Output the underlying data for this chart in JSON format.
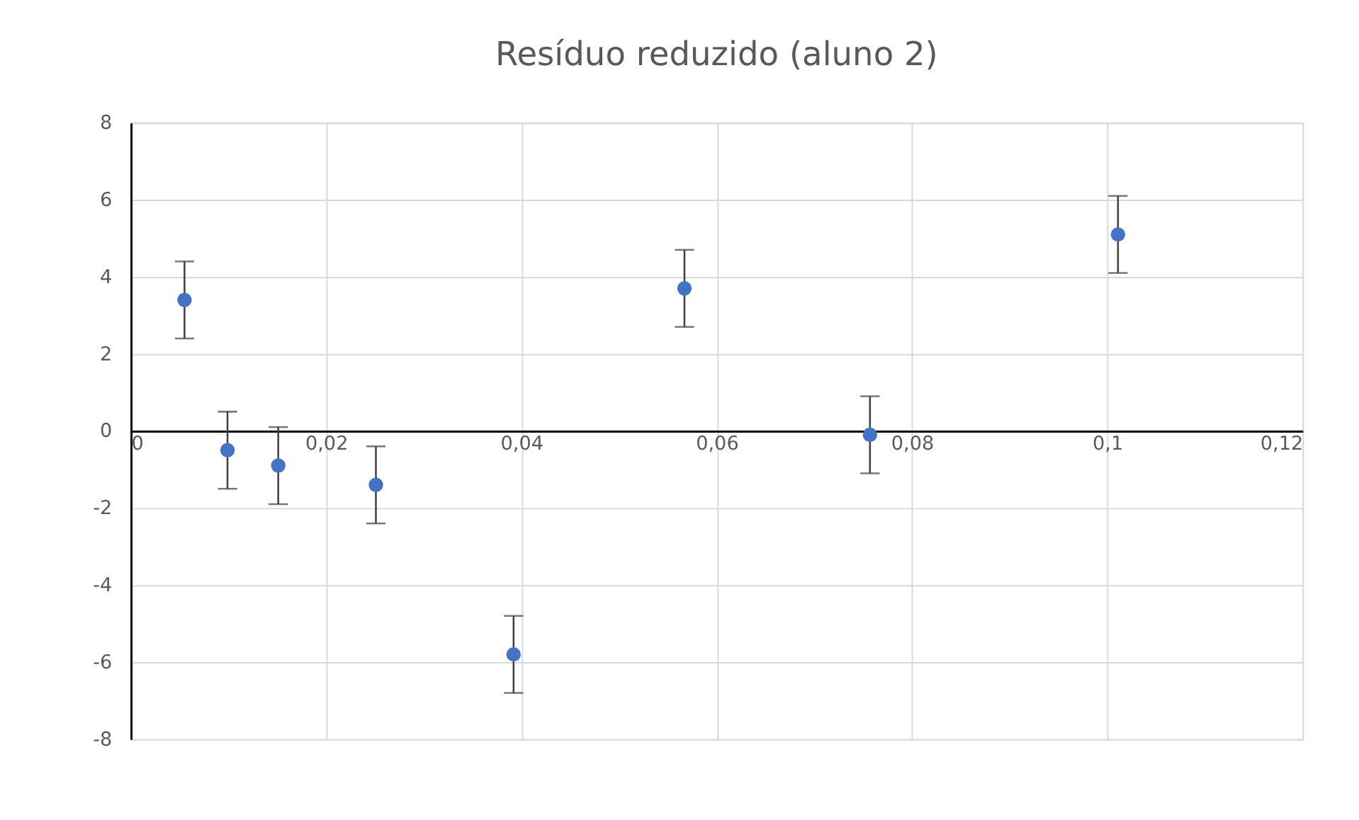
{
  "chart_data": {
    "type": "scatter",
    "title": "Resíduo reduzido (aluno 2)",
    "x": [
      0.0055,
      0.0099,
      0.0151,
      0.0251,
      0.0392,
      0.0567,
      0.0757,
      0.1011
    ],
    "series": [
      {
        "color": "#4472c4",
        "values": [
          3.4,
          -0.5,
          -0.9,
          -1.4,
          -5.8,
          3.7,
          -0.1,
          5.1
        ],
        "errors": [
          1,
          1,
          1,
          1,
          1,
          1,
          1,
          1
        ]
      }
    ],
    "xlim": [
      0,
      0.12
    ],
    "ylim": [
      -8,
      8
    ],
    "xticks": [
      0,
      {
        "value": 0.02,
        "label": "0,02"
      },
      {
        "value": 0.04,
        "label": "0,04"
      },
      {
        "value": 0.06,
        "label": "0,06"
      },
      {
        "value": 0.08,
        "label": "0,08"
      },
      {
        "value": 0.1,
        "label": "0,1"
      },
      {
        "value": 0.12,
        "label": "0,12"
      }
    ],
    "yticks": [
      -8,
      -6,
      -4,
      -2,
      0,
      2,
      4,
      6,
      8
    ],
    "grid": true,
    "marker": "circle"
  }
}
